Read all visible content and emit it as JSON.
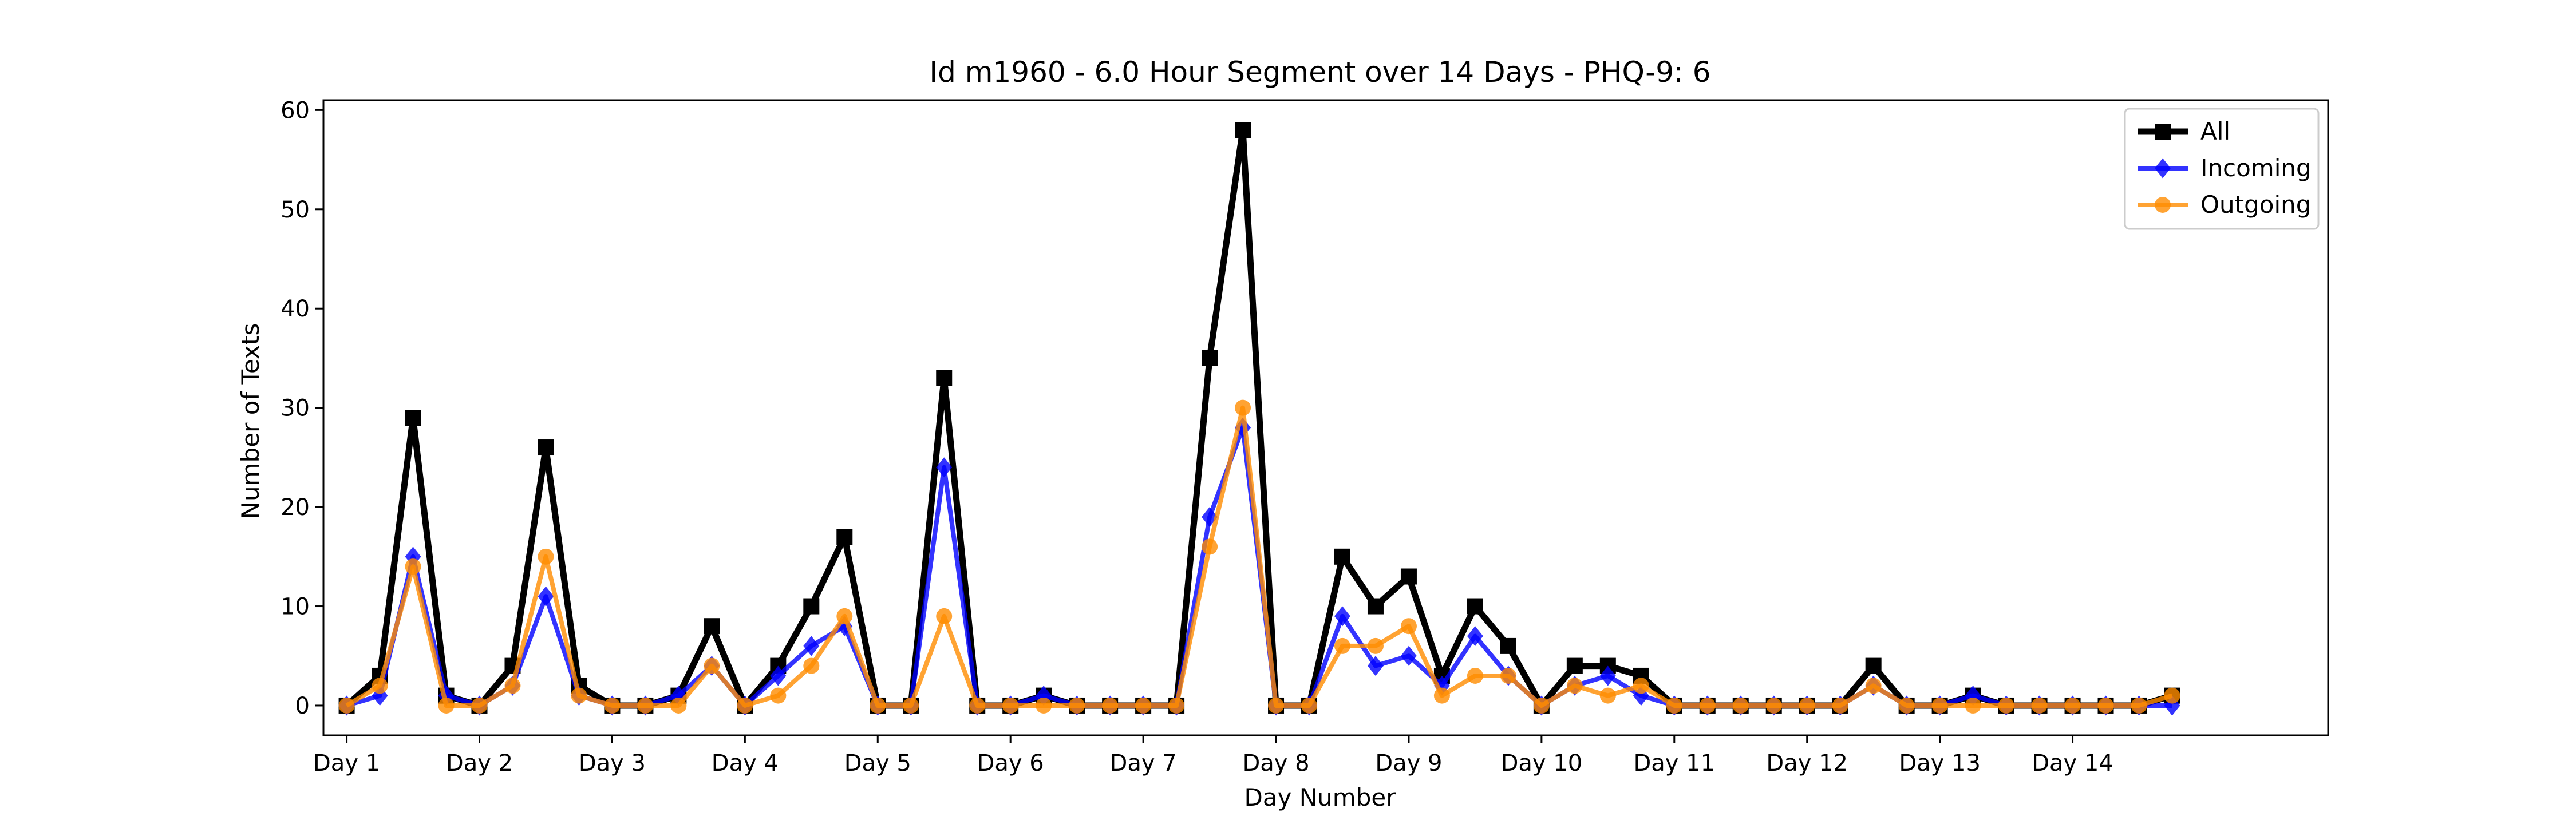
{
  "chart_data": {
    "type": "line",
    "title": "Id m1960 - 6.0 Hour Segment over 14 Days - PHQ-9: 6",
    "xlabel": "Day Number",
    "ylabel": "Number of Texts",
    "xlim": [
      -0.7,
      59.7
    ],
    "ylim": [
      -3,
      61
    ],
    "yticks": [
      0,
      10,
      20,
      30,
      40,
      50,
      60
    ],
    "xticks": [
      {
        "value": 0,
        "label": "Day 1"
      },
      {
        "value": 4,
        "label": "Day 2"
      },
      {
        "value": 8,
        "label": "Day 3"
      },
      {
        "value": 12,
        "label": "Day 4"
      },
      {
        "value": 16,
        "label": "Day 5"
      },
      {
        "value": 20,
        "label": "Day 6"
      },
      {
        "value": 24,
        "label": "Day 7"
      },
      {
        "value": 28,
        "label": "Day 8"
      },
      {
        "value": 32,
        "label": "Day 9"
      },
      {
        "value": 36,
        "label": "Day 10"
      },
      {
        "value": 40,
        "label": "Day 11"
      },
      {
        "value": 44,
        "label": "Day 12"
      },
      {
        "value": 48,
        "label": "Day 13"
      },
      {
        "value": 52,
        "label": "Day 14"
      }
    ],
    "grid": false,
    "legend_position": "top-right",
    "series": [
      {
        "name": "All",
        "color": "#000000",
        "marker": "square",
        "values": [
          0,
          3,
          29,
          1,
          0,
          4,
          26,
          2,
          0,
          0,
          1,
          8,
          0,
          4,
          10,
          17,
          0,
          0,
          33,
          0,
          0,
          1,
          0,
          0,
          0,
          0,
          35,
          58,
          0,
          0,
          15,
          10,
          13,
          3,
          10,
          6,
          0,
          4,
          4,
          3,
          0,
          0,
          0,
          0,
          0,
          0,
          4,
          0,
          0,
          1,
          0,
          0,
          0,
          0,
          0,
          1
        ]
      },
      {
        "name": "Incoming",
        "color": "#0000ff",
        "marker": "diamond",
        "values": [
          0,
          1,
          15,
          1,
          0,
          2,
          11,
          1,
          0,
          0,
          1,
          4,
          0,
          3,
          6,
          8,
          0,
          0,
          24,
          0,
          0,
          1,
          0,
          0,
          0,
          0,
          19,
          28,
          0,
          0,
          9,
          4,
          5,
          2,
          7,
          3,
          0,
          2,
          3,
          1,
          0,
          0,
          0,
          0,
          0,
          0,
          2,
          0,
          0,
          1,
          0,
          0,
          0,
          0,
          0,
          0
        ]
      },
      {
        "name": "Outgoing",
        "color": "#ff8c00",
        "marker": "circle",
        "values": [
          0,
          2,
          14,
          0,
          0,
          2,
          15,
          1,
          0,
          0,
          0,
          4,
          0,
          1,
          4,
          9,
          0,
          0,
          9,
          0,
          0,
          0,
          0,
          0,
          0,
          0,
          16,
          30,
          0,
          0,
          6,
          6,
          8,
          1,
          3,
          3,
          0,
          2,
          1,
          2,
          0,
          0,
          0,
          0,
          0,
          0,
          2,
          0,
          0,
          0,
          0,
          0,
          0,
          0,
          0,
          1
        ]
      }
    ]
  }
}
